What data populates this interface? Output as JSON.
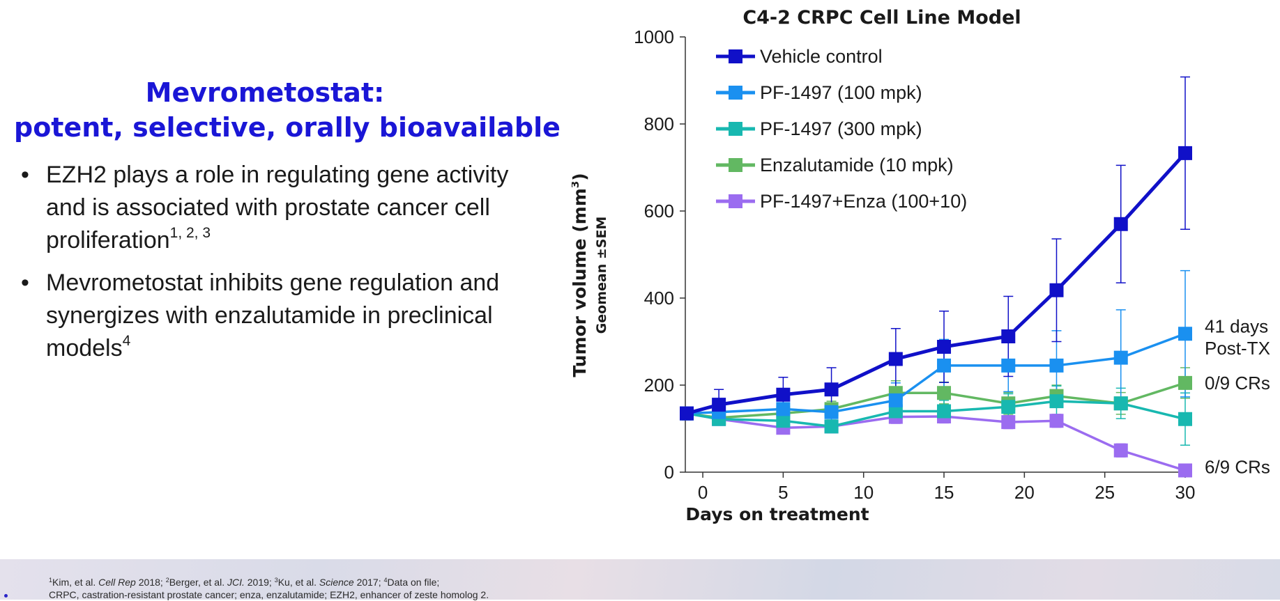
{
  "heading": {
    "line1": "Mevrometostat:",
    "line2": "potent, selective, orally bioavailable"
  },
  "bullets": [
    {
      "symbol": "•",
      "text": "EZH2 plays a role in regulating gene activity and is associated with prostate cancer cell proliferation",
      "sup": "1, 2, 3"
    },
    {
      "symbol": "•",
      "text": "Mevrometostat inhibits gene regulation and synergizes with enzalutamide in preclinical models",
      "sup": "4"
    }
  ],
  "footer": {
    "ref1_sup": "1",
    "ref1_author": "Kim, et al. ",
    "ref1_journal": "Cell Rep",
    "ref1_year": " 2018; ",
    "ref2_sup": "2",
    "ref2_author": "Berger, et al. ",
    "ref2_journal": "JCI.",
    "ref2_year": " 2019; ",
    "ref3_sup": "3",
    "ref3_author": "Ku, et al. ",
    "ref3_journal": "Science",
    "ref3_year": " 2017; ",
    "ref4_sup": "4",
    "ref4_text": "Data on file;",
    "line2": "CRPC, castration-resistant prostate cancer; enza, enzalutamide; EZH2, enhancer of zeste homolog 2."
  },
  "chart_data": {
    "type": "line",
    "title": "C4-2 CRPC Cell Line Model",
    "xlabel": "Days on treatment",
    "ylabel": "Tumor volume (mm",
    "ylabel_sup": "3",
    "ylabel_close": ")",
    "ylabel2": "Geomean ±SEM",
    "xlim": [
      -1,
      30
    ],
    "ylim": [
      0,
      1000
    ],
    "xticks": [
      0,
      5,
      10,
      15,
      20,
      25,
      30
    ],
    "yticks": [
      0,
      200,
      400,
      600,
      800,
      1000
    ],
    "grid": false,
    "legend_position": "top-left",
    "series": [
      {
        "name": "Vehicle control",
        "color": "#1010c8",
        "x": [
          -1,
          1,
          5,
          8,
          12,
          15,
          19,
          22,
          26,
          30
        ],
        "y": [
          135,
          155,
          178,
          190,
          260,
          288,
          312,
          418,
          570,
          733
        ],
        "err": [
          15,
          35,
          40,
          50,
          70,
          82,
          92,
          118,
          135,
          175
        ]
      },
      {
        "name": "PF-1497 (100 mpk)",
        "color": "#1a90f0",
        "x": [
          -1,
          1,
          5,
          8,
          12,
          15,
          19,
          22,
          26,
          30
        ],
        "y": [
          135,
          138,
          145,
          138,
          165,
          245,
          245,
          245,
          263,
          318
        ],
        "err": [
          12,
          20,
          25,
          20,
          40,
          60,
          60,
          80,
          110,
          145
        ]
      },
      {
        "name": "PF-1497 (300 mpk)",
        "color": "#18b8b0",
        "x": [
          -1,
          1,
          5,
          8,
          12,
          15,
          19,
          22,
          26,
          30
        ],
        "y": [
          135,
          122,
          118,
          105,
          140,
          140,
          150,
          163,
          158,
          122
        ],
        "err": [
          12,
          12,
          15,
          15,
          25,
          25,
          30,
          35,
          35,
          60
        ]
      },
      {
        "name": "Enzalutamide (10 mpk)",
        "color": "#62b862",
        "x": [
          -1,
          1,
          5,
          8,
          12,
          15,
          19,
          22,
          26,
          30
        ],
        "y": [
          135,
          125,
          135,
          145,
          182,
          182,
          158,
          175,
          158,
          205
        ],
        "err": [
          12,
          12,
          18,
          18,
          28,
          25,
          25,
          25,
          25,
          35
        ]
      },
      {
        "name": "PF-1497+Enza (100+10)",
        "color": "#9b6cf0",
        "x": [
          -1,
          1,
          5,
          8,
          12,
          15,
          19,
          22,
          26,
          30
        ],
        "y": [
          135,
          122,
          102,
          105,
          127,
          128,
          115,
          118,
          50,
          4
        ],
        "err": [
          12,
          12,
          12,
          12,
          15,
          15,
          15,
          15,
          15,
          4
        ]
      }
    ],
    "annotations": [
      {
        "text": "41 days",
        "x": 30,
        "y": 335
      },
      {
        "text": "Post-TX",
        "x": 30,
        "y": 285
      },
      {
        "text": "0/9 CRs",
        "x": 30,
        "y": 205
      },
      {
        "text": "6/9 CRs",
        "x": 30,
        "y": 12
      }
    ]
  }
}
